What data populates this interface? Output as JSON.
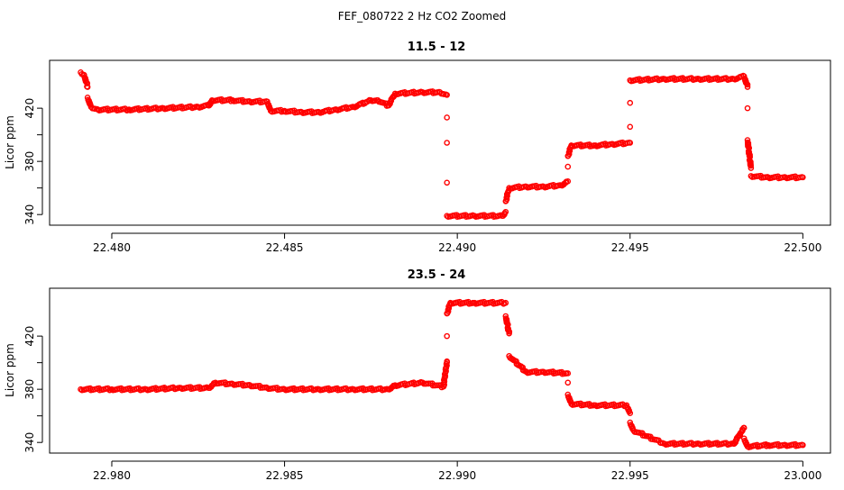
{
  "figure": {
    "title": "FEF_080722  2 Hz CO2 Zoomed",
    "colors": {
      "points": "#ff0000",
      "axes": "#000000",
      "background": "#ffffff"
    }
  },
  "chart_data": [
    {
      "type": "scatter",
      "title": "11.5 - 12",
      "xlabel": "",
      "ylabel": "Licor ppm",
      "xlim": [
        22.4782,
        22.5008
      ],
      "ylim": [
        332,
        456
      ],
      "xticks": [
        "22.480",
        "22.485",
        "22.490",
        "22.495",
        "22.500"
      ],
      "yticks": [
        "340",
        "",
        "380",
        "",
        "420"
      ],
      "ytick_values": [
        340,
        360,
        380,
        400,
        420
      ],
      "series": [
        {
          "points": [
            [
              22.4791,
              447
            ],
            [
              22.4792,
              445
            ],
            [
              22.4793,
              436
            ],
            [
              22.4793,
              428
            ],
            [
              22.4794,
              421
            ],
            [
              22.4796,
              419
            ],
            [
              22.4805,
              419
            ],
            [
              22.4815,
              420
            ],
            [
              22.4825,
              421
            ],
            [
              22.4828,
              422
            ],
            [
              22.4829,
              426
            ],
            [
              22.4835,
              426
            ],
            [
              22.484,
              425
            ],
            [
              22.4845,
              425
            ],
            [
              22.4846,
              418
            ],
            [
              22.485,
              418
            ],
            [
              22.4855,
              417
            ],
            [
              22.486,
              417
            ],
            [
              22.4865,
              419
            ],
            [
              22.487,
              421
            ],
            [
              22.4875,
              426
            ],
            [
              22.4877,
              426
            ],
            [
              22.488,
              422
            ],
            [
              22.4882,
              431
            ],
            [
              22.489,
              432
            ],
            [
              22.4895,
              432
            ],
            [
              22.4897,
              430
            ],
            [
              22.4897,
              413
            ],
            [
              22.4897,
              394
            ],
            [
              22.4897,
              364
            ],
            [
              22.4897,
              339
            ],
            [
              22.4905,
              339
            ],
            [
              22.4913,
              339
            ],
            [
              22.4914,
              342
            ],
            [
              22.4914,
              350
            ],
            [
              22.4915,
              360
            ],
            [
              22.492,
              361
            ],
            [
              22.4925,
              361
            ],
            [
              22.493,
              362
            ],
            [
              22.4932,
              365
            ],
            [
              22.4932,
              376
            ],
            [
              22.4932,
              384
            ],
            [
              22.4933,
              392
            ],
            [
              22.494,
              392
            ],
            [
              22.4945,
              393
            ],
            [
              22.495,
              394
            ],
            [
              22.495,
              406
            ],
            [
              22.495,
              424
            ],
            [
              22.495,
              441
            ],
            [
              22.496,
              442
            ],
            [
              22.497,
              442
            ],
            [
              22.498,
              442
            ],
            [
              22.4983,
              444
            ],
            [
              22.4984,
              436
            ],
            [
              22.4984,
              420
            ],
            [
              22.4984,
              396
            ],
            [
              22.4985,
              375
            ],
            [
              22.4985,
              369
            ],
            [
              22.499,
              368
            ],
            [
              22.4995,
              368
            ],
            [
              22.5,
              368
            ]
          ]
        }
      ]
    },
    {
      "type": "scatter",
      "title": "23.5 - 24",
      "xlabel": "",
      "ylabel": "Licor ppm",
      "xlim": [
        22.9782,
        23.0008
      ],
      "ylim": [
        332,
        456
      ],
      "xticks": [
        "22.980",
        "22.985",
        "22.990",
        "22.995",
        "23.000"
      ],
      "yticks": [
        "340",
        "",
        "380",
        "",
        "420"
      ],
      "ytick_values": [
        340,
        360,
        380,
        400,
        420
      ],
      "series": [
        {
          "points": [
            [
              22.9791,
              380
            ],
            [
              22.98,
              380
            ],
            [
              22.981,
              380
            ],
            [
              22.982,
              381
            ],
            [
              22.9828,
              381
            ],
            [
              22.983,
              385
            ],
            [
              22.9835,
              384
            ],
            [
              22.984,
              383
            ],
            [
              22.9845,
              381
            ],
            [
              22.985,
              380
            ],
            [
              22.986,
              380
            ],
            [
              22.987,
              380
            ],
            [
              22.988,
              380
            ],
            [
              22.9882,
              383
            ],
            [
              22.989,
              385
            ],
            [
              22.9896,
              382
            ],
            [
              22.9897,
              401
            ],
            [
              22.9897,
              420
            ],
            [
              22.9897,
              437
            ],
            [
              22.9898,
              445
            ],
            [
              22.9905,
              445
            ],
            [
              22.9914,
              445
            ],
            [
              22.9914,
              435
            ],
            [
              22.9915,
              422
            ],
            [
              22.9915,
              405
            ],
            [
              22.992,
              393
            ],
            [
              22.9925,
              393
            ],
            [
              22.9932,
              392
            ],
            [
              22.9932,
              385
            ],
            [
              22.9932,
              376
            ],
            [
              22.9933,
              369
            ],
            [
              22.994,
              368
            ],
            [
              22.9949,
              368
            ],
            [
              22.995,
              362
            ],
            [
              22.995,
              355
            ],
            [
              22.9951,
              349
            ],
            [
              22.996,
              339
            ],
            [
              22.997,
              339
            ],
            [
              22.998,
              339
            ],
            [
              22.9983,
              351
            ],
            [
              22.9983,
              343
            ],
            [
              22.9984,
              337
            ],
            [
              22.999,
              338
            ],
            [
              22.9995,
              338
            ],
            [
              23.0,
              338
            ]
          ]
        }
      ]
    }
  ]
}
